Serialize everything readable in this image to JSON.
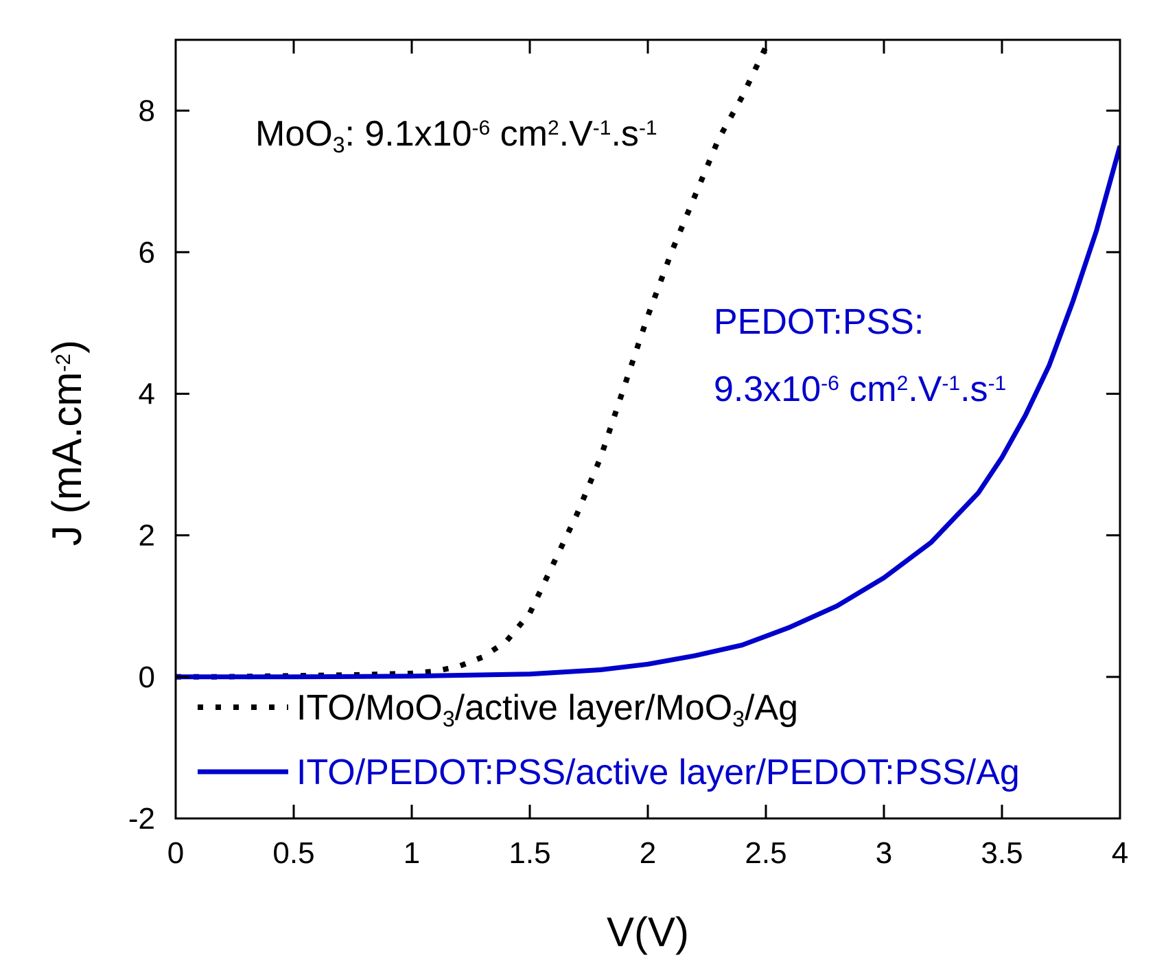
{
  "chart_data": {
    "type": "line",
    "title": "",
    "xlabel": "V(V)",
    "ylabel_parts": [
      "J (mA.cm",
      "-2",
      ")"
    ],
    "xlim": [
      0,
      4
    ],
    "ylim": [
      -2,
      9
    ],
    "xticks": [
      0,
      0.5,
      1,
      1.5,
      2,
      2.5,
      3,
      3.5,
      4
    ],
    "xtick_labels": [
      "0",
      "0.5",
      "1",
      "1.5",
      "2",
      "2.5",
      "3",
      "3.5",
      "4"
    ],
    "yticks": [
      -2,
      0,
      2,
      4,
      6,
      8
    ],
    "ytick_labels": [
      "-2",
      "0",
      "2",
      "4",
      "6",
      "8"
    ],
    "grid": false,
    "legend_position": "bottom-left",
    "series": [
      {
        "name": "ITO/MoO3/active layer/MoO3/Ag",
        "legend_parts": [
          "ITO/MoO",
          "3",
          "/active layer/MoO",
          "3",
          "/Ag"
        ],
        "color": "#000000",
        "style": "dotted",
        "x": [
          0,
          0.2,
          0.4,
          0.6,
          0.8,
          1.0,
          1.1,
          1.2,
          1.3,
          1.4,
          1.5,
          1.6,
          1.7,
          1.8,
          1.9,
          2.0,
          2.1,
          2.2,
          2.3,
          2.4,
          2.5
        ],
        "y": [
          0.0,
          0.0,
          0.01,
          0.02,
          0.03,
          0.05,
          0.08,
          0.15,
          0.28,
          0.5,
          0.9,
          1.6,
          2.3,
          3.1,
          4.1,
          5.1,
          6.0,
          6.8,
          7.6,
          8.2,
          8.9
        ]
      },
      {
        "name": "ITO/PEDOT:PSS/active layer/PEDOT:PSS/Ag",
        "legend_parts": [
          "ITO/PEDOT:PSS/active layer/PEDOT:PSS/Ag"
        ],
        "color": "#0000cc",
        "style": "solid",
        "x": [
          0,
          0.5,
          1.0,
          1.5,
          1.8,
          2.0,
          2.2,
          2.4,
          2.6,
          2.8,
          3.0,
          3.2,
          3.4,
          3.5,
          3.6,
          3.7,
          3.8,
          3.9,
          4.0
        ],
        "y": [
          0.0,
          0.0,
          0.01,
          0.04,
          0.1,
          0.18,
          0.3,
          0.45,
          0.7,
          1.0,
          1.4,
          1.9,
          2.6,
          3.1,
          3.7,
          4.4,
          5.3,
          6.3,
          7.5
        ]
      }
    ],
    "annotations": [
      {
        "name": "moo3-mobility",
        "color": "#000000",
        "parts": [
          "MoO",
          "3",
          ": 9.1x10",
          "-6",
          " cm",
          "2",
          ".V",
          "-1",
          ".s",
          "-1"
        ]
      },
      {
        "name": "pedot-label",
        "color": "#0000cc",
        "parts": [
          "PEDOT:PSS:"
        ]
      },
      {
        "name": "pedot-mobility",
        "color": "#0000cc",
        "parts": [
          "9.3x10",
          "-6",
          " cm",
          "2",
          ".V",
          "-1",
          ".s",
          "-1"
        ]
      }
    ]
  }
}
